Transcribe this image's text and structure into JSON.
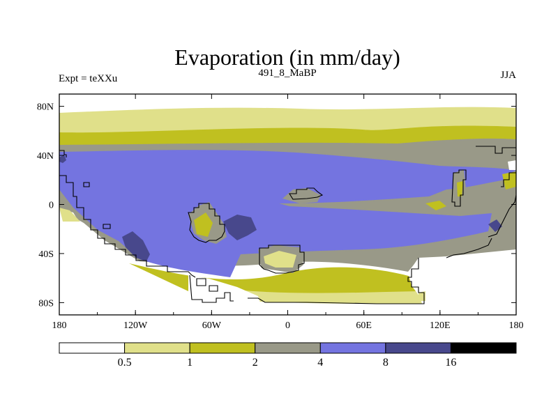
{
  "chart_data": {
    "type": "heatmap",
    "title": "Evaporation (in mm/day)",
    "left_label": "Expt = teXXu",
    "center_label": "491_8_MaBP",
    "right_label": "JJA",
    "x_ticks": [
      "180",
      "120W",
      "60W",
      "0",
      "60E",
      "120E",
      "180"
    ],
    "y_ticks": [
      "80N",
      "40N",
      "0",
      "40S",
      "80S"
    ],
    "xlim": [
      -180,
      180
    ],
    "ylim": [
      -90,
      90
    ],
    "colorbar": {
      "levels": [
        "0.5",
        "1",
        "2",
        "4",
        "8",
        "16"
      ],
      "colors": [
        "#ffffff",
        "#e0e08a",
        "#c0c020",
        "#999988",
        "#7474e0",
        "#48488c",
        "#000000"
      ]
    }
  }
}
